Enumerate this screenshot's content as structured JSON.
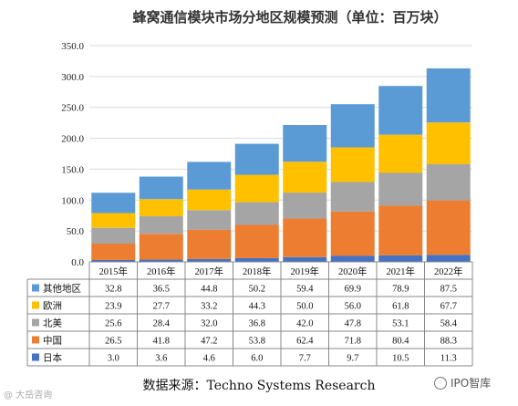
{
  "chart_data": {
    "type": "bar",
    "stacked": true,
    "title": "蜂窝通信模块市场分地区规模预测（单位：百万块）",
    "categories": [
      "2015年",
      "2016年",
      "2017年",
      "2018年",
      "2019年",
      "2020年",
      "2021年",
      "2022年"
    ],
    "ylim": [
      0,
      350
    ],
    "yticks": [
      "0.0",
      "50.0",
      "100.0",
      "150.0",
      "200.0",
      "250.0",
      "300.0",
      "350.0"
    ],
    "grid": true,
    "series": [
      {
        "name": "日本",
        "color": "#4472C4",
        "values": [
          3.0,
          3.6,
          4.6,
          6.0,
          7.7,
          9.7,
          10.5,
          11.3
        ]
      },
      {
        "name": "中国",
        "color": "#ED7D31",
        "values": [
          26.5,
          41.8,
          47.2,
          53.8,
          62.4,
          71.8,
          80.4,
          88.3
        ]
      },
      {
        "name": "北美",
        "color": "#A5A5A5",
        "values": [
          25.6,
          28.4,
          32.0,
          36.8,
          42.0,
          47.8,
          53.1,
          58.4
        ]
      },
      {
        "name": "欧洲",
        "color": "#FFC000",
        "values": [
          23.9,
          27.7,
          33.2,
          44.3,
          50.0,
          56.0,
          61.8,
          67.7
        ]
      },
      {
        "name": "其他地区",
        "color": "#5B9BD5",
        "values": [
          32.8,
          36.5,
          44.8,
          50.2,
          59.4,
          69.9,
          78.9,
          87.5
        ]
      }
    ],
    "table_rows": [
      {
        "name": "其他地区",
        "cells": [
          "32.8",
          "36.5",
          "44.8",
          "50.2",
          "59.4",
          "69.9",
          "78.9",
          "87.5"
        ]
      },
      {
        "name": "欧洲",
        "cells": [
          "23.9",
          "27.7",
          "33.2",
          "44.3",
          "50.0",
          "56.0",
          "61.8",
          "67.7"
        ]
      },
      {
        "name": "北美",
        "cells": [
          "25.6",
          "28.4",
          "32.0",
          "36.8",
          "42.0",
          "47.8",
          "53.1",
          "58.4"
        ]
      },
      {
        "name": "中国",
        "cells": [
          "26.5",
          "41.8",
          "47.2",
          "53.8",
          "62.4",
          "71.8",
          "80.4",
          "88.3"
        ]
      },
      {
        "name": "日本",
        "cells": [
          "3.0",
          "3.6",
          "4.6",
          "6.0",
          "7.7",
          "9.7",
          "10.5",
          "11.3"
        ]
      }
    ],
    "table_colors": {
      "其他地区": "#5B9BD5",
      "欧洲": "#FFC000",
      "北美": "#A5A5A5",
      "中国": "#ED7D31",
      "日本": "#4472C4"
    }
  },
  "source_text": "数据来源：Techno Systems Research",
  "watermark_right": "IPO智库",
  "watermark_left": "@ 大岳咨询"
}
